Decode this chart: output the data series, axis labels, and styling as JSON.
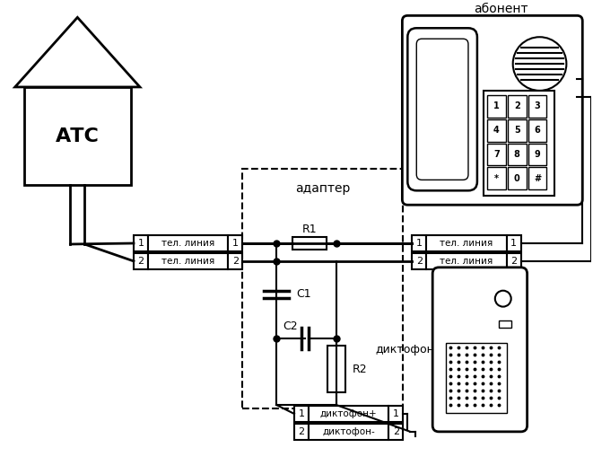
{
  "bg_color": "#ffffff",
  "line_color": "#000000",
  "house_label": "АТС",
  "subscriber_label": "абонент",
  "adapter_label": "адаптер",
  "dictophone_label": "диктофон",
  "r1_label": "R1",
  "r2_label": "R2",
  "c1_label": "C1",
  "c2_label": "C2",
  "keys": [
    [
      "1",
      "2",
      "3"
    ],
    [
      "4",
      "5",
      "6"
    ],
    [
      "7",
      "8",
      "9"
    ],
    [
      "*",
      "0",
      "#"
    ]
  ]
}
